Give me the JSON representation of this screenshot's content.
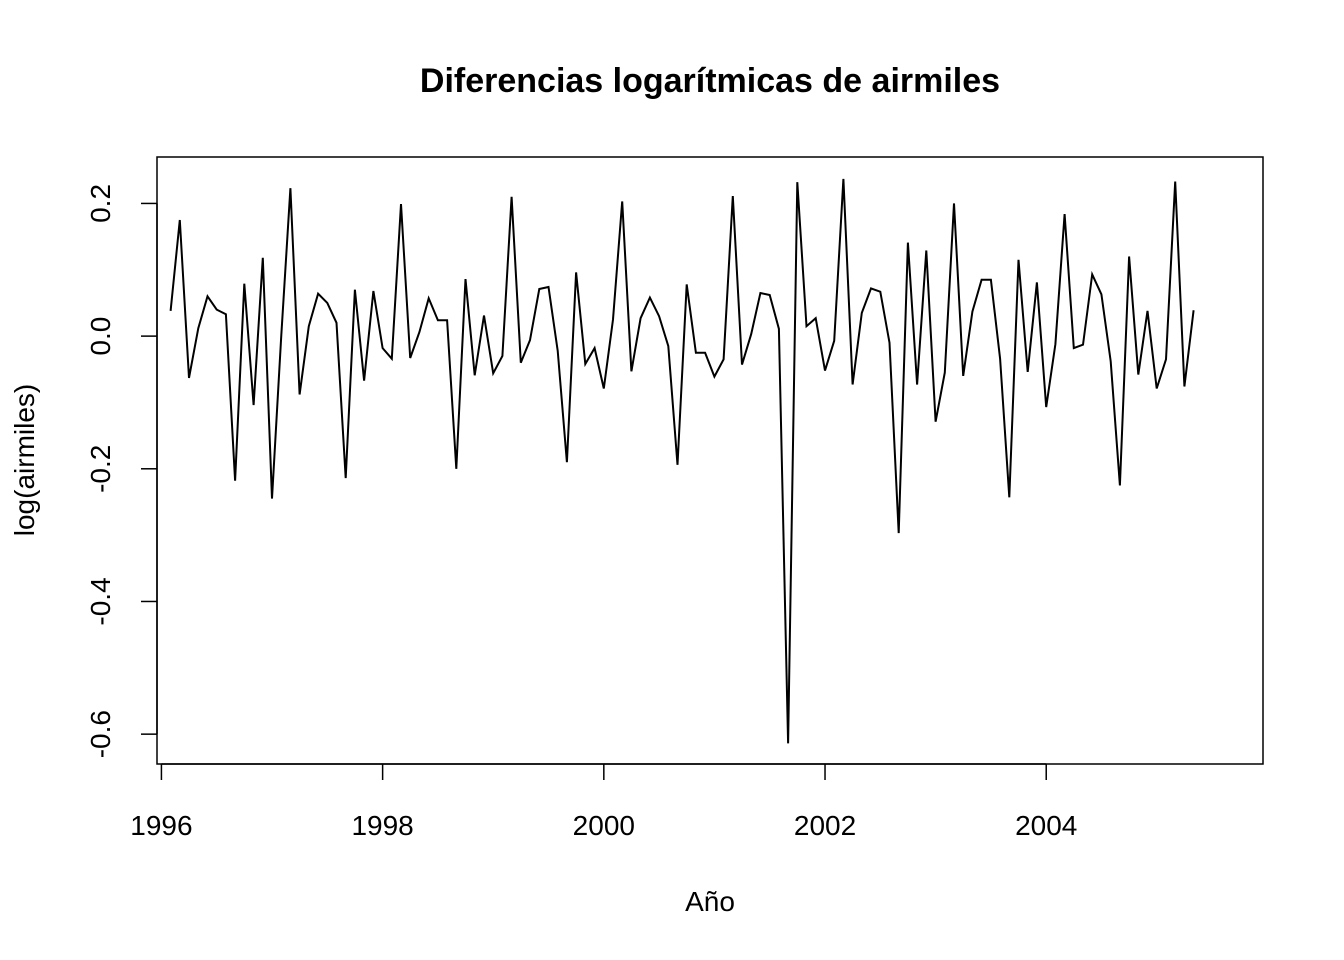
{
  "chart_data": {
    "type": "line",
    "title": "Diferencias logarítmicas de airmiles",
    "xlabel": "Año",
    "ylabel": "log(airmiles)",
    "x_ticks": [
      "1996",
      "1998",
      "2000",
      "2002",
      "2004"
    ],
    "y_ticks": [
      "-0.6",
      "-0.4",
      "-0.2",
      "0.0",
      "0.2"
    ],
    "xlim": [
      1995.96,
      2005.96
    ],
    "ylim": [
      -0.645,
      0.27
    ],
    "grid": false,
    "legend": "none",
    "x_start": 1996.083,
    "x_step": 0.08333,
    "series": [
      {
        "color": "#000000",
        "values": [
          0.038,
          0.175,
          -0.063,
          0.012,
          0.06,
          0.04,
          0.033,
          -0.218,
          0.079,
          -0.104,
          0.118,
          -0.245,
          -0.001,
          0.223,
          -0.088,
          0.015,
          0.064,
          0.05,
          0.02,
          -0.214,
          0.07,
          -0.067,
          0.068,
          -0.018,
          -0.034,
          0.199,
          -0.033,
          0.006,
          0.057,
          0.024,
          0.024,
          -0.2,
          0.086,
          -0.059,
          0.031,
          -0.056,
          -0.03,
          0.21,
          -0.04,
          -0.006,
          0.071,
          0.074,
          -0.022,
          -0.19,
          0.096,
          -0.042,
          -0.018,
          -0.079,
          0.025,
          0.203,
          -0.053,
          0.027,
          0.058,
          0.03,
          -0.015,
          -0.194,
          0.078,
          -0.025,
          -0.025,
          -0.061,
          -0.035,
          0.211,
          -0.043,
          0.003,
          0.065,
          0.062,
          0.011,
          -0.614,
          0.232,
          0.015,
          0.027,
          -0.052,
          -0.007,
          0.237,
          -0.073,
          0.035,
          0.072,
          0.067,
          -0.01,
          -0.297,
          0.141,
          -0.073,
          0.129,
          -0.129,
          -0.055,
          0.2,
          -0.06,
          0.037,
          0.085,
          0.085,
          -0.034,
          -0.243,
          0.115,
          -0.054,
          0.081,
          -0.107,
          -0.012,
          0.184,
          -0.018,
          -0.013,
          0.093,
          0.063,
          -0.038,
          -0.225,
          0.12,
          -0.058,
          0.038,
          -0.079,
          -0.035,
          0.233,
          -0.076,
          0.039
        ]
      }
    ]
  }
}
